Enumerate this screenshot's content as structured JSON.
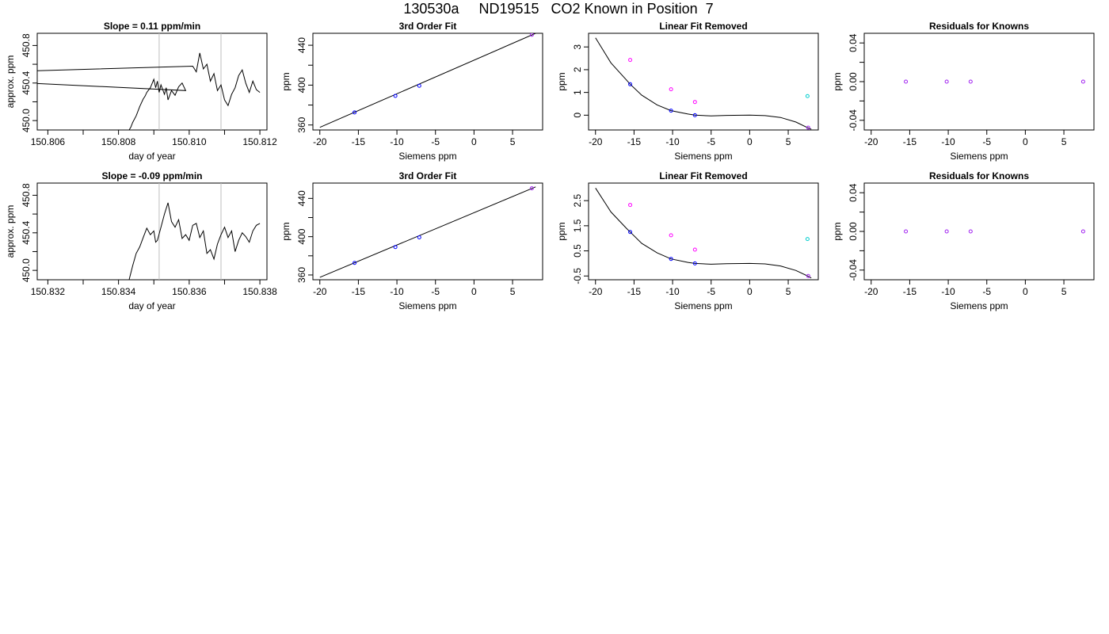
{
  "main_title": "130530a     ND19515   CO2 Known in Position  7",
  "colors": {
    "line": "#000000",
    "vline": "#bebebe",
    "blue": "#0000ff",
    "magenta": "#ff00ff",
    "cyan": "#00cdcd",
    "purple": "#a020f0"
  },
  "chart_data": [
    {
      "type": "line",
      "title": "Slope =  0.11  ppm/min",
      "xlabel": "day of year",
      "ylabel": "approx. ppm",
      "xlim": [
        150.8057,
        150.8122
      ],
      "ylim": [
        449.9,
        450.93
      ],
      "xticks": [
        150.806,
        150.807,
        150.808,
        150.809,
        150.81,
        150.811,
        150.812
      ],
      "xticklabels": [
        "150.806",
        "",
        "150.808",
        "",
        "150.810",
        "",
        "150.812"
      ],
      "yticks": [
        450.0,
        450.2,
        450.4,
        450.6,
        450.8
      ],
      "yticklabels": [
        "450.0",
        "",
        "450.4",
        "",
        "450.8"
      ],
      "vlines": [
        150.80915,
        150.8109
      ],
      "series": [
        {
          "x": [
            150.8057,
            150.8083,
            150.80835,
            150.8084,
            150.8085,
            150.8086,
            150.8087,
            150.80875,
            150.8088,
            150.8089,
            150.809,
            150.80905,
            150.8091,
            150.80915,
            150.8092,
            150.8093,
            150.80935,
            150.8094,
            150.8095,
            150.8096,
            150.8097,
            150.8098,
            150.8099,
            150.801,
            150.8101,
            150.8102,
            150.8103,
            150.8104,
            150.8105,
            150.8106,
            150.8107,
            150.8108,
            150.8109,
            150.811,
            150.8111,
            150.8112,
            150.8113,
            150.8114,
            150.8115,
            150.8116,
            150.8117,
            150.8118,
            150.8119,
            150.812
          ],
          "y": [
            449.9,
            449.9,
            449.93,
            449.98,
            450.05,
            450.15,
            450.23,
            450.26,
            450.3,
            450.35,
            450.44,
            450.35,
            450.42,
            450.3,
            450.38,
            450.28,
            450.35,
            450.22,
            450.32,
            450.27,
            450.36,
            450.4,
            450.32,
            450.48,
            450.58,
            450.52,
            450.72,
            450.55,
            450.6,
            450.42,
            450.5,
            450.32,
            450.38,
            450.22,
            450.16,
            450.28,
            450.35,
            450.48,
            450.54,
            450.4,
            450.3,
            450.42,
            450.33,
            450.3
          ]
        }
      ]
    },
    {
      "type": "scatter",
      "title": "3rd Order Fit",
      "xlabel": "Siemens ppm",
      "ylabel": "ppm",
      "xlim": [
        -20.9,
        8.9
      ],
      "ylim": [
        355,
        452
      ],
      "xticks": [
        -20,
        -15,
        -10,
        -5,
        0,
        5
      ],
      "yticks": [
        360,
        380,
        400,
        420,
        440
      ],
      "yticklabels": [
        "360",
        "",
        "400",
        "",
        "440"
      ],
      "curve": {
        "x": [
          -20,
          8
        ],
        "y": [
          357.6,
          452
        ]
      },
      "points": [
        {
          "x": -15.5,
          "y": 372.6,
          "color": "blue"
        },
        {
          "x": -10.2,
          "y": 389.2,
          "color": "blue"
        },
        {
          "x": -7.1,
          "y": 399.3,
          "color": "blue"
        },
        {
          "x": 7.5,
          "y": 450.5,
          "color": "purple"
        }
      ]
    },
    {
      "type": "scatter",
      "title": "Linear Fit Removed",
      "xlabel": "Siemens ppm",
      "ylabel": "ppm",
      "xlim": [
        -20.9,
        8.9
      ],
      "ylim": [
        -0.65,
        3.6
      ],
      "xticks": [
        -20,
        -15,
        -10,
        -5,
        0,
        5
      ],
      "yticks": [
        0,
        1,
        2,
        3
      ],
      "curve": {
        "x": [
          -20,
          -18,
          -16,
          -15.5,
          -14,
          -12,
          -10.2,
          -8,
          -7.1,
          -5,
          -3,
          0,
          2,
          4,
          6,
          7.5,
          8
        ],
        "y": [
          3.4,
          2.3,
          1.55,
          1.36,
          0.88,
          0.45,
          0.2,
          0.05,
          0.0,
          -0.03,
          -0.01,
          0.0,
          -0.02,
          -0.1,
          -0.3,
          -0.55,
          -0.62
        ]
      },
      "points": [
        {
          "x": -15.5,
          "y": 1.36,
          "color": "blue"
        },
        {
          "x": -10.2,
          "y": 0.2,
          "color": "blue"
        },
        {
          "x": -7.1,
          "y": 0.0,
          "color": "blue"
        },
        {
          "x": -15.5,
          "y": 2.43,
          "color": "magenta"
        },
        {
          "x": -10.2,
          "y": 1.14,
          "color": "magenta"
        },
        {
          "x": -7.1,
          "y": 0.58,
          "color": "magenta"
        },
        {
          "x": 7.5,
          "y": 0.84,
          "color": "cyan"
        },
        {
          "x": 7.6,
          "y": -0.55,
          "color": "purple"
        }
      ]
    },
    {
      "type": "scatter",
      "title": "Residuals for Knowns",
      "xlabel": "Siemens ppm",
      "ylabel": "ppm",
      "xlim": [
        -20.9,
        8.9
      ],
      "ylim": [
        -0.05,
        0.05
      ],
      "xticks": [
        -20,
        -15,
        -10,
        -5,
        0,
        5
      ],
      "yticks": [
        -0.04,
        -0.02,
        0.0,
        0.02,
        0.04
      ],
      "yticklabels": [
        "-0.04",
        "",
        "0.00",
        "",
        "0.04"
      ],
      "points": [
        {
          "x": -15.5,
          "y": 0.0,
          "color": "purple"
        },
        {
          "x": -10.2,
          "y": 0.0,
          "color": "purple"
        },
        {
          "x": -7.1,
          "y": 0.0,
          "color": "purple"
        },
        {
          "x": 7.5,
          "y": 0.0,
          "color": "purple"
        }
      ]
    },
    {
      "type": "line",
      "title": "Slope =  -0.09  ppm/min",
      "xlabel": "day of year",
      "ylabel": "approx. ppm",
      "xlim": [
        150.8317,
        150.8382
      ],
      "ylim": [
        449.9,
        450.93
      ],
      "xticks": [
        150.832,
        150.833,
        150.834,
        150.835,
        150.836,
        150.837,
        150.838
      ],
      "xticklabels": [
        "150.832",
        "",
        "150.834",
        "",
        "150.836",
        "",
        "150.838"
      ],
      "yticks": [
        450.0,
        450.2,
        450.4,
        450.6,
        450.8
      ],
      "yticklabels": [
        "450.0",
        "",
        "450.4",
        "",
        "450.8"
      ],
      "vlines": [
        150.83515,
        150.8369
      ],
      "series": [
        {
          "x": [
            150.8317,
            150.8343,
            150.8344,
            150.8345,
            150.8346,
            150.8347,
            150.8348,
            150.8349,
            150.835,
            150.83505,
            150.8351,
            150.8352,
            150.8353,
            150.8354,
            150.8355,
            150.8356,
            150.8357,
            150.8358,
            150.8359,
            150.836,
            150.8361,
            150.8362,
            150.8363,
            150.8364,
            150.8365,
            150.8366,
            150.8367,
            150.8368,
            150.8369,
            150.837,
            150.8371,
            150.8372,
            150.8373,
            150.8374,
            150.8375,
            150.8376,
            150.8377,
            150.8378,
            150.8379,
            150.838
          ],
          "y": [
            449.9,
            449.9,
            450.05,
            450.18,
            450.25,
            450.35,
            450.45,
            450.38,
            450.42,
            450.3,
            450.32,
            450.46,
            450.6,
            450.72,
            450.52,
            450.46,
            450.54,
            450.34,
            450.38,
            450.32,
            450.48,
            450.5,
            450.35,
            450.42,
            450.18,
            450.22,
            450.12,
            450.28,
            450.38,
            450.46,
            450.35,
            450.42,
            450.2,
            450.32,
            450.4,
            450.36,
            450.3,
            450.42,
            450.48,
            450.5
          ]
        }
      ]
    },
    {
      "type": "scatter",
      "title": "3rd Order Fit",
      "xlabel": "Siemens ppm",
      "ylabel": "ppm",
      "xlim": [
        -20.9,
        8.9
      ],
      "ylim": [
        355,
        456
      ],
      "xticks": [
        -20,
        -15,
        -10,
        -5,
        0,
        5
      ],
      "yticks": [
        360,
        380,
        400,
        420,
        440
      ],
      "yticklabels": [
        "360",
        "",
        "400",
        "",
        "440"
      ],
      "curve": {
        "x": [
          -20,
          8
        ],
        "y": [
          357.6,
          452
        ]
      },
      "points": [
        {
          "x": -15.5,
          "y": 372.6,
          "color": "blue"
        },
        {
          "x": -10.2,
          "y": 389.2,
          "color": "blue"
        },
        {
          "x": -7.1,
          "y": 399.3,
          "color": "blue"
        },
        {
          "x": 7.5,
          "y": 450.5,
          "color": "purple"
        }
      ]
    },
    {
      "type": "scatter",
      "title": "Linear Fit Removed",
      "xlabel": "Siemens ppm",
      "ylabel": "ppm",
      "xlim": [
        -20.9,
        8.9
      ],
      "ylim": [
        -0.65,
        3.2
      ],
      "xticks": [
        -20,
        -15,
        -10,
        -5,
        0,
        5
      ],
      "yticks": [
        -0.5,
        0.5,
        1.5,
        2.5
      ],
      "curve": {
        "x": [
          -20,
          -18,
          -16,
          -15.5,
          -14,
          -12,
          -10.2,
          -8,
          -7.1,
          -5,
          -3,
          0,
          2,
          4,
          6,
          7.5,
          8
        ],
        "y": [
          3.0,
          2.05,
          1.4,
          1.25,
          0.8,
          0.42,
          0.18,
          0.04,
          0.0,
          -0.03,
          -0.01,
          0.0,
          -0.02,
          -0.1,
          -0.28,
          -0.5,
          -0.58
        ]
      },
      "points": [
        {
          "x": -15.5,
          "y": 1.25,
          "color": "blue"
        },
        {
          "x": -10.2,
          "y": 0.18,
          "color": "blue"
        },
        {
          "x": -7.1,
          "y": 0.0,
          "color": "blue"
        },
        {
          "x": -15.5,
          "y": 2.33,
          "color": "magenta"
        },
        {
          "x": -10.2,
          "y": 1.12,
          "color": "magenta"
        },
        {
          "x": -7.1,
          "y": 0.55,
          "color": "magenta"
        },
        {
          "x": 7.5,
          "y": 0.97,
          "color": "cyan"
        },
        {
          "x": 7.6,
          "y": -0.5,
          "color": "purple"
        }
      ]
    },
    {
      "type": "scatter",
      "title": "Residuals for Knowns",
      "xlabel": "Siemens ppm",
      "ylabel": "ppm",
      "xlim": [
        -20.9,
        8.9
      ],
      "ylim": [
        -0.05,
        0.05
      ],
      "xticks": [
        -20,
        -15,
        -10,
        -5,
        0,
        5
      ],
      "yticks": [
        -0.04,
        -0.02,
        0.0,
        0.02,
        0.04
      ],
      "yticklabels": [
        "-0.04",
        "",
        "0.00",
        "",
        "0.04"
      ],
      "points": [
        {
          "x": -15.5,
          "y": 0.0,
          "color": "purple"
        },
        {
          "x": -10.2,
          "y": 0.0,
          "color": "purple"
        },
        {
          "x": -7.1,
          "y": 0.0,
          "color": "purple"
        },
        {
          "x": 7.5,
          "y": 0.0,
          "color": "purple"
        }
      ]
    }
  ]
}
